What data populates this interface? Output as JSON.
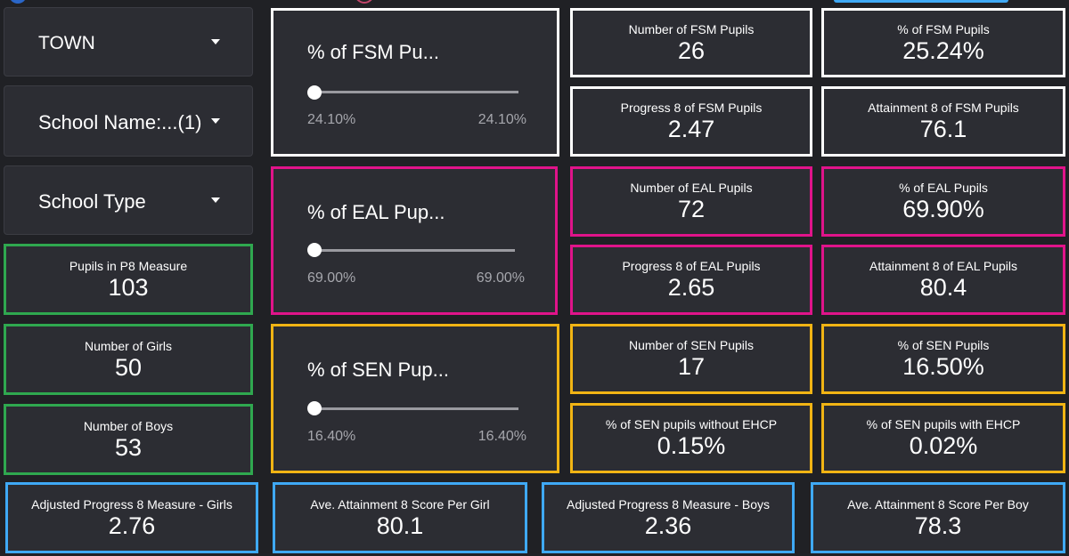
{
  "filters": {
    "town_label": "TOWN",
    "school_name_label": "School Name:...(1)",
    "school_type_label": "School Type"
  },
  "sliders": {
    "fsm": {
      "title": "% of FSM Pu...",
      "min_label": "24.10%",
      "max_label": "24.10%"
    },
    "eal": {
      "title": "% of EAL Pup...",
      "min_label": "69.00%",
      "max_label": "69.00%"
    },
    "sen": {
      "title": "% of SEN Pup...",
      "min_label": "16.40%",
      "max_label": "16.40%"
    }
  },
  "kpis": {
    "pupils_p8": {
      "label": "Pupils in P8 Measure",
      "value": "103"
    },
    "girls": {
      "label": "Number of Girls",
      "value": "50"
    },
    "boys": {
      "label": "Number of Boys",
      "value": "53"
    },
    "fsm_number": {
      "label": "Number of FSM Pupils",
      "value": "26"
    },
    "fsm_percent": {
      "label": "% of FSM Pupils",
      "value": "25.24%"
    },
    "fsm_progress8": {
      "label": "Progress 8 of FSM Pupils",
      "value": "2.47"
    },
    "fsm_attainment8": {
      "label": "Attainment 8 of FSM Pupils",
      "value": "76.1"
    },
    "eal_number": {
      "label": "Number of EAL Pupils",
      "value": "72"
    },
    "eal_percent": {
      "label": "% of EAL Pupils",
      "value": "69.90%"
    },
    "eal_progress8": {
      "label": "Progress 8 of EAL Pupils",
      "value": "2.65"
    },
    "eal_attainment8": {
      "label": "Attainment 8 of EAL Pupils",
      "value": "80.4"
    },
    "sen_number": {
      "label": "Number of SEN Pupils",
      "value": "17"
    },
    "sen_percent": {
      "label": "% of SEN Pupils",
      "value": "16.50%"
    },
    "sen_without_ehcp": {
      "label": "% of SEN pupils without EHCP",
      "value": "0.15%"
    },
    "sen_with_ehcp": {
      "label": "% of SEN pupils with EHCP",
      "value": "0.02%"
    },
    "adj_p8_girls": {
      "label": "Adjusted Progress 8 Measure - Girls",
      "value": "2.76"
    },
    "att8_girl": {
      "label": "Ave. Attainment 8 Score Per Girl",
      "value": "80.1"
    },
    "adj_p8_boys": {
      "label": "Adjusted Progress 8 Measure - Boys",
      "value": "2.36"
    },
    "att8_boy": {
      "label": "Ave. Attainment 8 Score Per Boy",
      "value": "78.3"
    }
  },
  "colors": {
    "fsm": "#ffffff",
    "eal": "#e0148a",
    "sen": "#f1b414",
    "pupils": "#2fa84f",
    "gender_scores": "#3fa9f5"
  }
}
